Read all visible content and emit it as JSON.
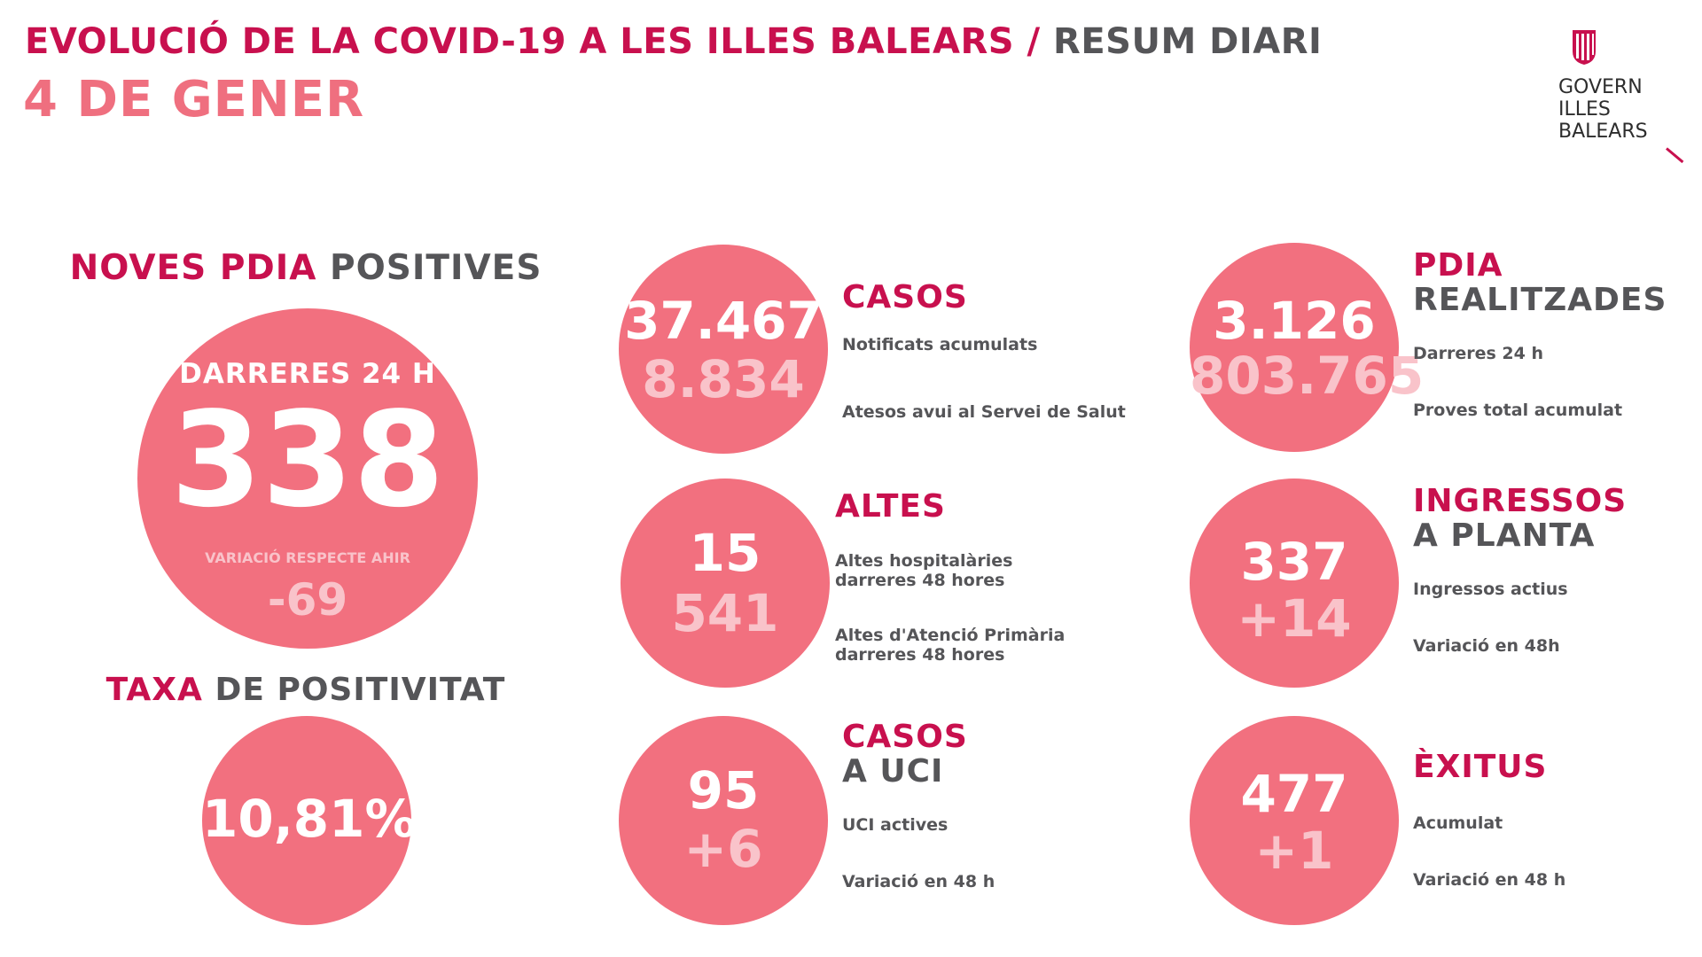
{
  "header": {
    "title_accent": "EVOLUCIÓ DE LA COVID-19 A LES ILLES BALEARS /",
    "title_grey": "RESUM DIARI",
    "date": "4 DE GENER"
  },
  "logo": {
    "line1": "GOVERN",
    "line2": "ILLES",
    "line3": "BALEARS"
  },
  "noves_pdia": {
    "title_accent": "NOVES PDIA",
    "title_grey": "POSITIVES",
    "period": "DARRERES 24 H",
    "value": "338",
    "variation_label": "VARIACIÓ RESPECTE AHIR",
    "variation": "-69"
  },
  "taxa": {
    "title_accent": "TAXA",
    "title_grey": "DE POSITIVITAT",
    "value": "10,81%"
  },
  "casos": {
    "title_accent": "CASOS",
    "primary": "37.467",
    "secondary": "8.834",
    "label1": "Notificats acumulats",
    "label2": "Atesos avui al Servei de Salut"
  },
  "altes": {
    "title_accent": "ALTES",
    "primary": "15",
    "secondary": "541",
    "label1_line1": "Altes hospitalàries",
    "label1_line2": "darreres 48 hores",
    "label2_line1": "Altes d'Atenció Primària",
    "label2_line2": "darreres 48 hores"
  },
  "uci": {
    "title_accent": "CASOS",
    "title_grey": "A UCI",
    "primary": "95",
    "secondary": "+6",
    "label1": "UCI actives",
    "label2": "Variació en 48 h"
  },
  "pdia_realitzades": {
    "title_accent": "PDIA",
    "title_grey": "REALITZADES",
    "primary": "3.126",
    "secondary": "803.765",
    "label1": "Darreres 24 h",
    "label2": "Proves total acumulat"
  },
  "ingressos": {
    "title_accent": "INGRESSOS",
    "title_grey": "A PLANTA",
    "primary": "337",
    "secondary": "+14",
    "label1": "Ingressos actius",
    "label2": "Variació en 48h"
  },
  "exitus": {
    "title_accent": "ÈXITUS",
    "primary": "477",
    "secondary": "+1",
    "label1": "Acumulat",
    "label2": "Variació en 48 h"
  },
  "colors": {
    "accent": "#c8104e",
    "grey_text": "#555558",
    "date_pink": "#ef6f7f",
    "circle": "#f2707f",
    "pale_number": "#f9c3ca"
  }
}
